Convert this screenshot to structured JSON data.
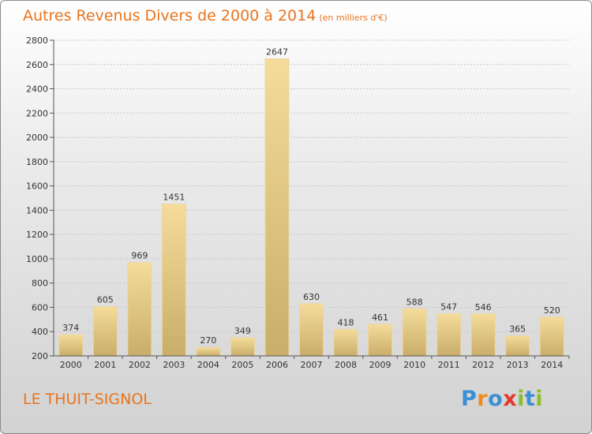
{
  "header": {
    "title": "Autres Revenus Divers de 2000 à 2014",
    "subtitle": "(en milliers d'€)"
  },
  "footer": {
    "commune": "LE THUIT-SIGNOL",
    "brand": "Proxiti",
    "brand_colors": [
      "#3b8fd4",
      "#f08a1c",
      "#3b8fd4",
      "#e03a2a",
      "#8bbf2a",
      "#3b8fd4",
      "#8bbf2a"
    ]
  },
  "colors": {
    "title": "#e8741e",
    "bar_light": "#f5dc9a",
    "bar_dark": "#c9ad6a",
    "grid": "#c8c8c8",
    "axis": "#555555"
  },
  "chart_data": {
    "type": "bar",
    "categories": [
      "2000",
      "2001",
      "2002",
      "2003",
      "2004",
      "2005",
      "2006",
      "2007",
      "2008",
      "2009",
      "2010",
      "2011",
      "2012",
      "2013",
      "2014"
    ],
    "values": [
      374,
      605,
      969,
      1451,
      270,
      349,
      2647,
      630,
      418,
      461,
      588,
      547,
      546,
      365,
      520
    ],
    "ylim": [
      200,
      2800
    ],
    "yticks": [
      200,
      400,
      600,
      800,
      1000,
      1200,
      1400,
      1600,
      1800,
      2000,
      2200,
      2400,
      2600,
      2800
    ],
    "grid": true,
    "show_value_labels": true
  }
}
